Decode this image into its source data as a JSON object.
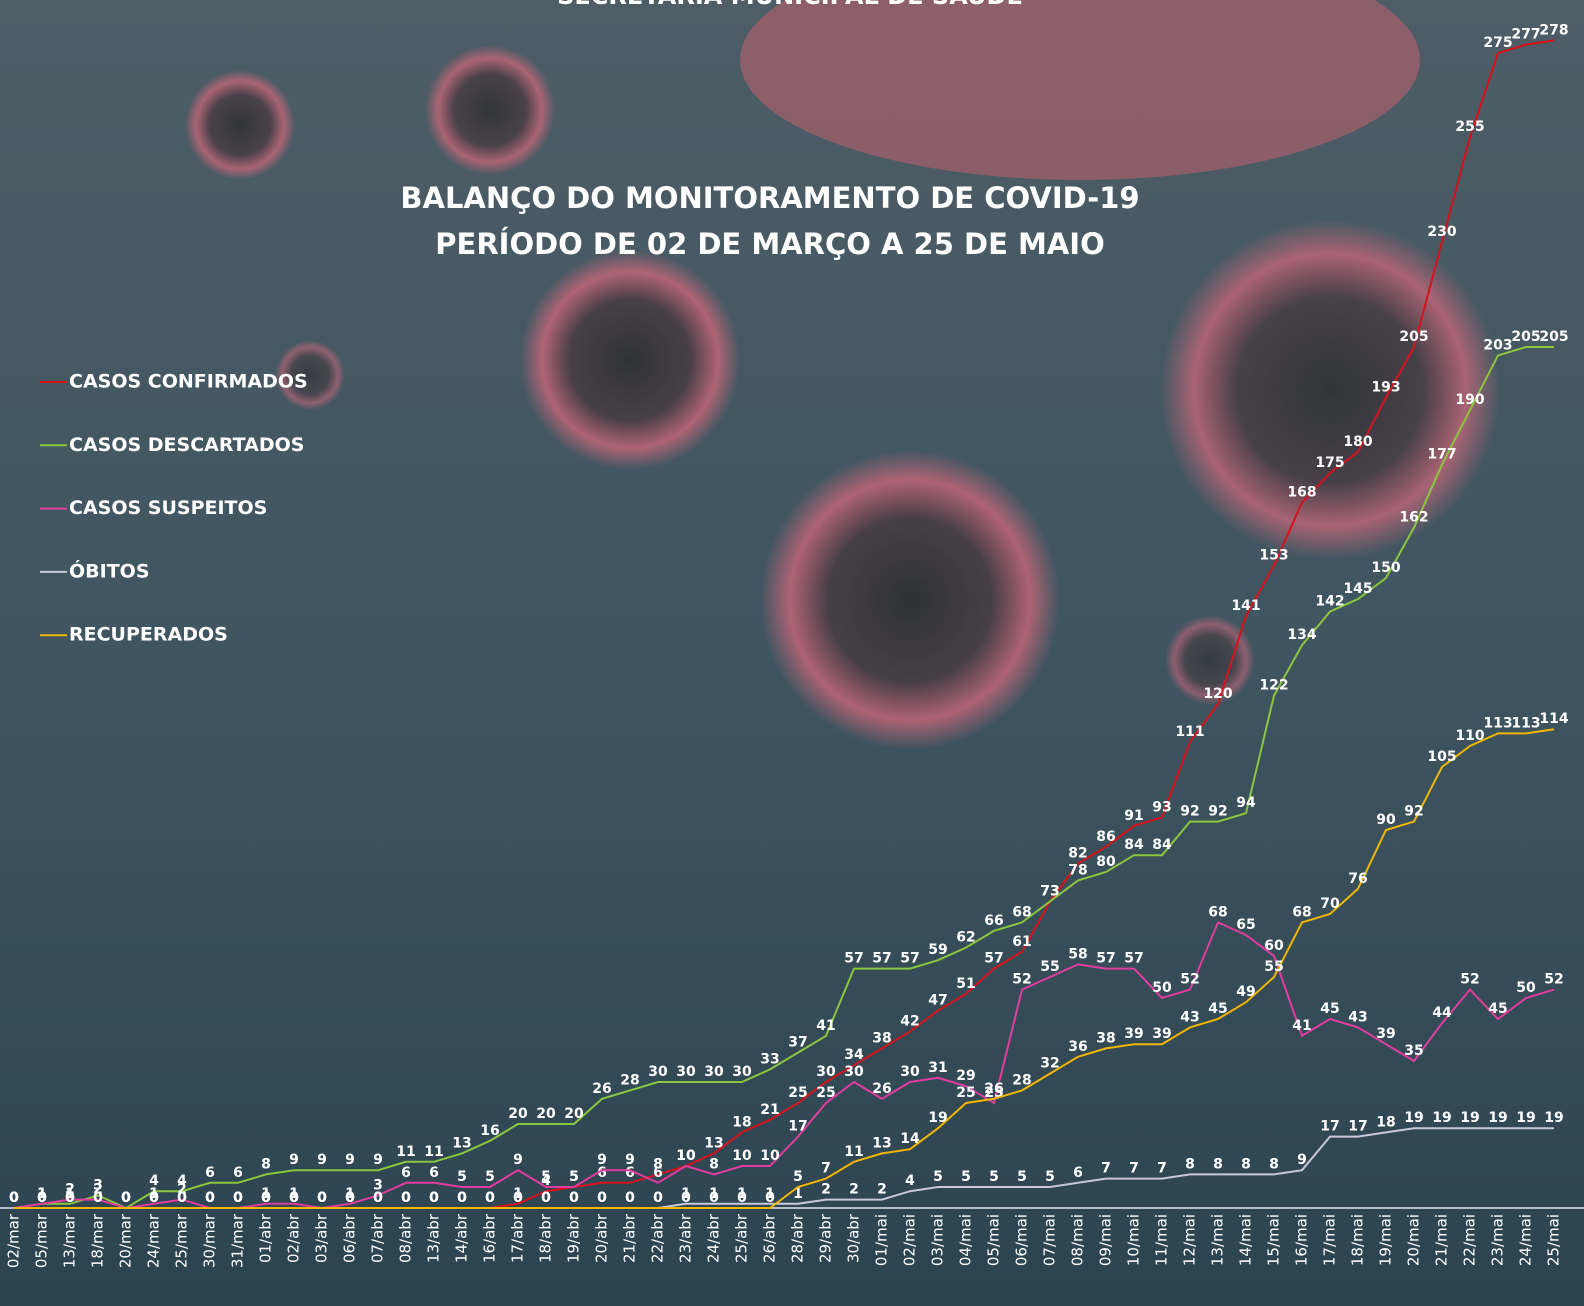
{
  "chart_data": {
    "type": "line",
    "header": "SECRETARIA MUNICIPAL DE SAÚDE",
    "title": "BALANÇO DO MONITORAMENTO DE COVID-19",
    "subtitle": "PERÍODO DE 02 DE MARÇO A 25 DE MAIO",
    "legend": "left",
    "ylim": [
      0,
      285
    ],
    "categories": [
      "02/mar",
      "05/mar",
      "13/mar",
      "18/mar",
      "20/mar",
      "24/mar",
      "25/mar",
      "30/mar",
      "31/mar",
      "01/abr",
      "02/abr",
      "03/abr",
      "06/abr",
      "07/abr",
      "08/abr",
      "13/abr",
      "14/abr",
      "16/abr",
      "17/abr",
      "18/abr",
      "19/abr",
      "20/abr",
      "21/abr",
      "22/abr",
      "23/abr",
      "24/abr",
      "25/abr",
      "26/abr",
      "28/abr",
      "29/abr",
      "30/abr",
      "01/mai",
      "02/mai",
      "03/mai",
      "04/mai",
      "05/mai",
      "06/mai",
      "07/mai",
      "08/mai",
      "09/mai",
      "10/mai",
      "11/mai",
      "12/mai",
      "13/mai",
      "14/mai",
      "15/mai",
      "16/mai",
      "17/mai",
      "18/mai",
      "19/mai",
      "20/mai",
      "21/mai",
      "22/mai",
      "23/mai",
      "24/mai",
      "25/mai"
    ],
    "series": [
      {
        "name": "CASOS CONFIRMADOS",
        "color": "#d8121c",
        "values": [
          0,
          0,
          0,
          0,
          0,
          0,
          0,
          0,
          0,
          0,
          0,
          0,
          0,
          0,
          0,
          0,
          0,
          0,
          1,
          4,
          5,
          6,
          6,
          8,
          10,
          13,
          18,
          21,
          25,
          30,
          34,
          38,
          42,
          47,
          51,
          57,
          61,
          73,
          82,
          86,
          91,
          93,
          111,
          120,
          141,
          153,
          168,
          175,
          180,
          193,
          205,
          230,
          255,
          275,
          277,
          278
        ]
      },
      {
        "name": "CASOS DESCARTADOS",
        "color": "#8cc63f",
        "values": [
          0,
          1,
          1,
          3,
          0,
          4,
          4,
          6,
          6,
          8,
          9,
          9,
          9,
          9,
          11,
          11,
          13,
          16,
          20,
          20,
          20,
          26,
          28,
          30,
          30,
          30,
          30,
          33,
          37,
          41,
          57,
          57,
          57,
          59,
          62,
          66,
          68,
          73,
          78,
          80,
          84,
          84,
          92,
          92,
          94,
          122,
          134,
          142,
          145,
          150,
          162,
          177,
          190,
          203,
          205,
          205
        ]
      },
      {
        "name": "CASOS SUSPEITOS",
        "color": "#e23c9e",
        "values": [
          0,
          1,
          2,
          2,
          0,
          1,
          2,
          0,
          0,
          1,
          1,
          0,
          1,
          3,
          6,
          6,
          5,
          5,
          9,
          5,
          5,
          9,
          9,
          6,
          10,
          8,
          10,
          10,
          17,
          25,
          30,
          26,
          30,
          31,
          29,
          25,
          52,
          55,
          58,
          57,
          57,
          50,
          52,
          68,
          65,
          60,
          41,
          45,
          43,
          39,
          35,
          44,
          52,
          45,
          50,
          52
        ]
      },
      {
        "name": "ÓBITOS",
        "color": "#c9c9dc",
        "values": [
          0,
          0,
          0,
          0,
          0,
          0,
          0,
          0,
          0,
          0,
          0,
          0,
          0,
          0,
          0,
          0,
          0,
          0,
          0,
          0,
          0,
          0,
          0,
          0,
          1,
          1,
          1,
          1,
          1,
          2,
          2,
          2,
          4,
          5,
          5,
          5,
          5,
          5,
          6,
          7,
          7,
          7,
          8,
          8,
          8,
          8,
          9,
          17,
          17,
          18,
          19,
          19,
          19,
          19,
          19,
          19
        ]
      },
      {
        "name": "RECUPERADOS",
        "color": "#f2b600",
        "values": [
          0,
          0,
          0,
          0,
          0,
          0,
          0,
          0,
          0,
          0,
          0,
          0,
          0,
          0,
          0,
          0,
          0,
          0,
          0,
          0,
          0,
          0,
          0,
          0,
          0,
          0,
          0,
          0,
          5,
          7,
          11,
          13,
          14,
          19,
          25,
          26,
          28,
          32,
          36,
          38,
          39,
          39,
          43,
          45,
          49,
          55,
          68,
          70,
          76,
          90,
          92,
          105,
          110,
          113,
          113,
          114
        ]
      }
    ]
  }
}
